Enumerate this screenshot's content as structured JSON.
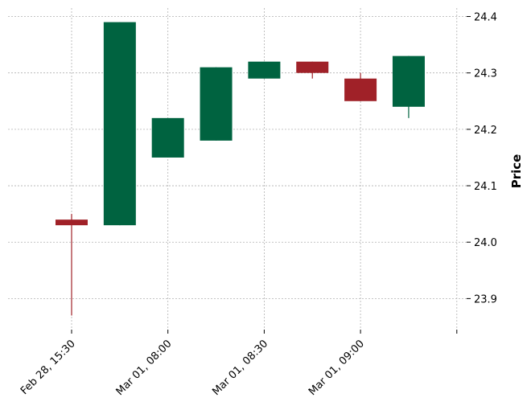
{
  "chart_data": {
    "type": "candlestick",
    "title": "",
    "xlabel": "",
    "ylabel": "Price",
    "ylim": [
      23.845,
      24.415
    ],
    "y_ticks": [
      23.9,
      24.0,
      24.1,
      24.2,
      24.3,
      24.4
    ],
    "y_tick_labels": [
      "23.9",
      "24.0",
      "24.1",
      "24.2",
      "24.3",
      "24.4"
    ],
    "x_tick_positions": [
      0,
      2,
      4,
      6,
      8
    ],
    "x_tick_labels": [
      "Feb 28, 15:30",
      "Mar 01, 08:00",
      "Mar 01, 08:30",
      "Mar 01, 09:00",
      ""
    ],
    "grid": true,
    "up_color": "#006340",
    "down_color": "#a02128",
    "grid_color": "#b0b0b0",
    "candles": [
      {
        "index": 0,
        "open": 24.04,
        "high": 24.05,
        "low": 23.87,
        "close": 24.03
      },
      {
        "index": 1,
        "open": 24.03,
        "high": 24.39,
        "low": 24.03,
        "close": 24.39
      },
      {
        "index": 2,
        "open": 24.15,
        "high": 24.22,
        "low": 24.15,
        "close": 24.22
      },
      {
        "index": 3,
        "open": 24.18,
        "high": 24.31,
        "low": 24.18,
        "close": 24.31
      },
      {
        "index": 4,
        "open": 24.29,
        "high": 24.32,
        "low": 24.29,
        "close": 24.32
      },
      {
        "index": 5,
        "open": 24.32,
        "high": 24.32,
        "low": 24.29,
        "close": 24.3
      },
      {
        "index": 6,
        "open": 24.29,
        "high": 24.3,
        "low": 24.25,
        "close": 24.25
      },
      {
        "index": 7,
        "open": 24.24,
        "high": 24.33,
        "low": 24.22,
        "close": 24.33
      }
    ]
  }
}
